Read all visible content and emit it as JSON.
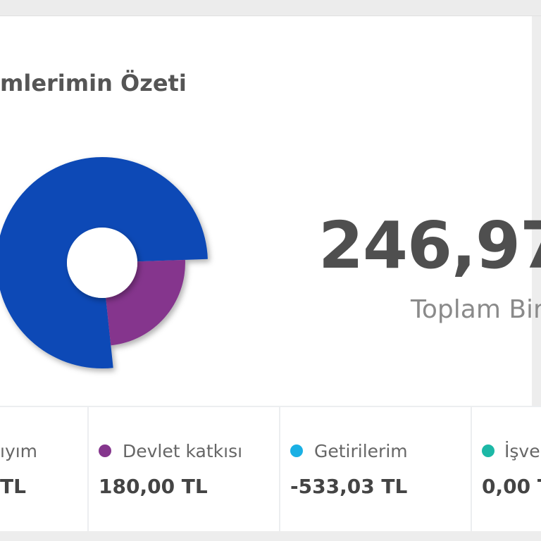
{
  "header": {
    "title": "mlerimin Özeti"
  },
  "summary": {
    "total": "246,97",
    "total_label": "Toplam Bir"
  },
  "items": [
    {
      "label": "ıyım",
      "value": "TL"
    },
    {
      "label": "Devlet katkısı",
      "value": "180,00 TL"
    },
    {
      "label": "Getirilerim",
      "value": "-533,03 TL"
    },
    {
      "label": "İşver",
      "value": "0,00 T"
    }
  ]
}
